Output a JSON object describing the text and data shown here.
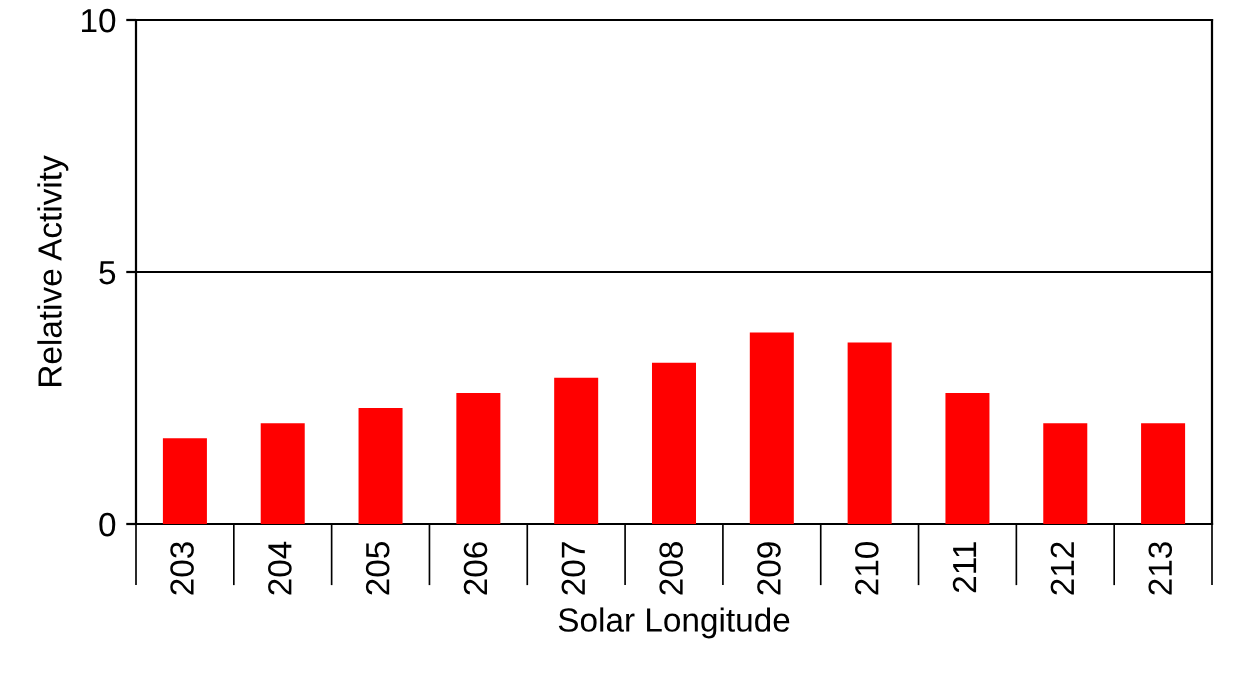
{
  "chart_data": {
    "type": "bar",
    "xlabel": "Solar Longitude",
    "ylabel": "Relative Activity",
    "categories": [
      "203",
      "204",
      "205",
      "206",
      "207",
      "208",
      "209",
      "210",
      "211",
      "212",
      "213"
    ],
    "values": [
      1.7,
      2.0,
      2.3,
      2.6,
      2.9,
      3.2,
      3.8,
      3.6,
      2.6,
      2.0,
      2.0
    ],
    "color": "#ff0000",
    "ylim": [
      0,
      10
    ],
    "yticks": [
      0,
      5,
      10
    ],
    "grid": "y"
  }
}
